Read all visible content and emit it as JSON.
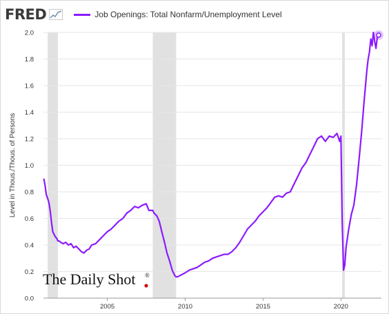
{
  "header": {
    "logo_text": "FRED",
    "series_label": "Job Openings: Total Nonfarm/Unemployment Level"
  },
  "watermark": {
    "text": "The Daily Shot",
    "reg": "®"
  },
  "colors": {
    "line": "#8c1aff",
    "recession": "#e1e1e1",
    "grid": "#e6e6e6"
  },
  "chart_data": {
    "type": "line",
    "title": "",
    "xlabel": "",
    "ylabel": "Level in Thous./Thous. of Persons",
    "xlim": [
      2000.9,
      2022.6
    ],
    "ylim": [
      0.0,
      2.0
    ],
    "x_ticks": [
      2005,
      2010,
      2015,
      2020
    ],
    "y_ticks": [
      "0.0",
      "0.2",
      "0.4",
      "0.6",
      "0.8",
      "1.0",
      "1.2",
      "1.4",
      "1.6",
      "1.8",
      "2.0"
    ],
    "recessions": [
      [
        2001.17,
        2001.83
      ],
      [
        2007.92,
        2009.42
      ],
      [
        2020.08,
        2020.25
      ]
    ],
    "grid": true,
    "series": [
      {
        "name": "Job Openings: Total Nonfarm/Unemployment Level",
        "x": [
          2000.92,
          2001.0,
          2001.08,
          2001.17,
          2001.25,
          2001.33,
          2001.42,
          2001.5,
          2001.58,
          2001.67,
          2001.75,
          2001.83,
          2001.92,
          2002.0,
          2002.17,
          2002.33,
          2002.5,
          2002.67,
          2002.83,
          2003.0,
          2003.17,
          2003.33,
          2003.5,
          2003.67,
          2003.83,
          2004.0,
          2004.25,
          2004.5,
          2004.75,
          2005.0,
          2005.25,
          2005.5,
          2005.75,
          2006.0,
          2006.25,
          2006.5,
          2006.75,
          2007.0,
          2007.25,
          2007.5,
          2007.67,
          2007.75,
          2007.92,
          2008.0,
          2008.17,
          2008.33,
          2008.5,
          2008.67,
          2008.83,
          2009.0,
          2009.17,
          2009.33,
          2009.42,
          2009.5,
          2009.67,
          2009.83,
          2010.0,
          2010.25,
          2010.5,
          2010.75,
          2011.0,
          2011.25,
          2011.5,
          2011.75,
          2012.0,
          2012.25,
          2012.5,
          2012.75,
          2013.0,
          2013.25,
          2013.5,
          2013.75,
          2014.0,
          2014.25,
          2014.5,
          2014.75,
          2015.0,
          2015.25,
          2015.5,
          2015.75,
          2016.0,
          2016.25,
          2016.5,
          2016.75,
          2017.0,
          2017.25,
          2017.5,
          2017.75,
          2018.0,
          2018.25,
          2018.5,
          2018.75,
          2019.0,
          2019.25,
          2019.5,
          2019.75,
          2019.92,
          2020.0,
          2020.08,
          2020.17,
          2020.25,
          2020.33,
          2020.5,
          2020.67,
          2020.83,
          2021.0,
          2021.17,
          2021.33,
          2021.5,
          2021.67,
          2021.75,
          2021.83,
          2021.92,
          2022.0,
          2022.08,
          2022.17,
          2022.25,
          2022.33,
          2022.42
        ],
        "values": [
          0.9,
          0.85,
          0.78,
          0.75,
          0.72,
          0.66,
          0.57,
          0.5,
          0.48,
          0.46,
          0.45,
          0.43,
          0.43,
          0.42,
          0.41,
          0.42,
          0.4,
          0.41,
          0.38,
          0.39,
          0.37,
          0.35,
          0.34,
          0.36,
          0.37,
          0.4,
          0.41,
          0.44,
          0.47,
          0.5,
          0.52,
          0.55,
          0.58,
          0.6,
          0.64,
          0.66,
          0.69,
          0.68,
          0.7,
          0.71,
          0.66,
          0.66,
          0.66,
          0.64,
          0.62,
          0.58,
          0.5,
          0.42,
          0.34,
          0.28,
          0.21,
          0.17,
          0.16,
          0.16,
          0.17,
          0.18,
          0.19,
          0.21,
          0.22,
          0.23,
          0.25,
          0.27,
          0.28,
          0.3,
          0.31,
          0.32,
          0.33,
          0.33,
          0.35,
          0.38,
          0.42,
          0.47,
          0.52,
          0.55,
          0.58,
          0.62,
          0.65,
          0.68,
          0.72,
          0.76,
          0.77,
          0.76,
          0.79,
          0.8,
          0.86,
          0.92,
          0.98,
          1.02,
          1.08,
          1.14,
          1.2,
          1.22,
          1.18,
          1.22,
          1.21,
          1.24,
          1.18,
          1.22,
          0.58,
          0.21,
          0.25,
          0.38,
          0.52,
          0.63,
          0.7,
          0.85,
          1.05,
          1.25,
          1.5,
          1.72,
          1.8,
          1.85,
          1.95,
          1.9,
          2.0,
          1.93,
          1.88,
          1.96,
          1.98
        ]
      }
    ]
  }
}
